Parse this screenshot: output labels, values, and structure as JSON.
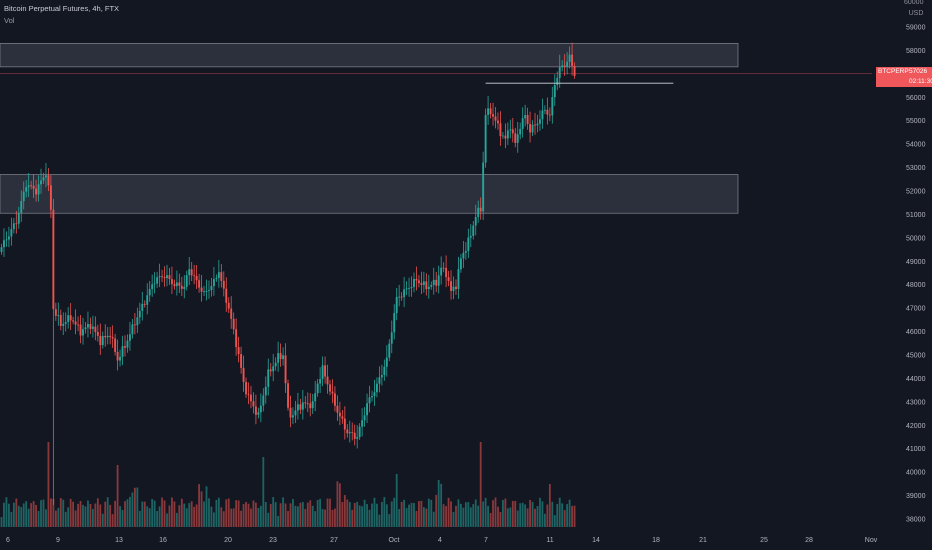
{
  "header": {
    "title": "Bitcoin Perpetual Futures, 4h, FTX",
    "indicator": "Vol"
  },
  "price_scale": {
    "currency": "USD",
    "top_tick": "60000"
  },
  "last_price": {
    "symbol": "BTCPERP",
    "price": "57026",
    "countdown": "02:11:30"
  },
  "colors": {
    "background": "#131722",
    "up": "#26a69a",
    "down": "#ef5350",
    "zone_fill": "#363a45",
    "zone_border": "#787b86",
    "axis_text": "#b2b5be",
    "last_price_line": "#f0575b"
  },
  "chart_data": {
    "type": "candlestick",
    "title": "Bitcoin Perpetual Futures, 4h, FTX",
    "ylim": [
      37500,
      60500
    ],
    "y_ticks": [
      38000,
      39000,
      40000,
      41000,
      42000,
      43000,
      44000,
      45000,
      46000,
      47000,
      48000,
      49000,
      50000,
      51000,
      52000,
      53000,
      54000,
      55000,
      56000,
      57000,
      58000,
      59000
    ],
    "x_ticks": [
      "6",
      "9",
      "13",
      "16",
      "20",
      "23",
      "27",
      "Oct",
      "4",
      "7",
      "11",
      "14",
      "18",
      "21",
      "25",
      "28",
      "Nov"
    ],
    "series": [
      {
        "name": "BTCPERP",
        "anchors": [
          [
            0,
            49600
          ],
          [
            6,
            50700
          ],
          [
            10,
            52300
          ],
          [
            14,
            52000
          ],
          [
            18,
            52800
          ],
          [
            19,
            52100
          ],
          [
            20,
            51200
          ],
          [
            21,
            47000
          ],
          [
            24,
            46300
          ],
          [
            28,
            46600
          ],
          [
            32,
            46000
          ],
          [
            36,
            46300
          ],
          [
            40,
            45600
          ],
          [
            44,
            45900
          ],
          [
            47,
            44800
          ],
          [
            50,
            45400
          ],
          [
            54,
            46400
          ],
          [
            58,
            47300
          ],
          [
            62,
            48200
          ],
          [
            66,
            48400
          ],
          [
            70,
            48000
          ],
          [
            74,
            47900
          ],
          [
            76,
            48700
          ],
          [
            78,
            48300
          ],
          [
            82,
            47600
          ],
          [
            86,
            48100
          ],
          [
            88,
            48600
          ],
          [
            90,
            47700
          ],
          [
            92,
            47000
          ],
          [
            96,
            45000
          ],
          [
            98,
            43800
          ],
          [
            100,
            43200
          ],
          [
            104,
            42400
          ],
          [
            108,
            44200
          ],
          [
            112,
            44900
          ],
          [
            114,
            45000
          ],
          [
            116,
            42600
          ],
          [
            118,
            42400
          ],
          [
            120,
            42800
          ],
          [
            122,
            42900
          ],
          [
            126,
            42900
          ],
          [
            128,
            43800
          ],
          [
            130,
            44400
          ],
          [
            132,
            43800
          ],
          [
            136,
            42600
          ],
          [
            140,
            41700
          ],
          [
            144,
            41500
          ],
          [
            148,
            42900
          ],
          [
            152,
            43700
          ],
          [
            156,
            44800
          ],
          [
            160,
            47400
          ],
          [
            164,
            47800
          ],
          [
            168,
            48200
          ],
          [
            172,
            47900
          ],
          [
            176,
            48100
          ],
          [
            178,
            48700
          ],
          [
            180,
            48500
          ],
          [
            182,
            47700
          ],
          [
            184,
            48000
          ],
          [
            186,
            49100
          ],
          [
            190,
            50100
          ],
          [
            192,
            51000
          ],
          [
            194,
            51200
          ],
          [
            196,
            55300
          ],
          [
            198,
            55400
          ],
          [
            200,
            55000
          ],
          [
            202,
            54500
          ],
          [
            204,
            54200
          ],
          [
            206,
            54800
          ],
          [
            208,
            54000
          ],
          [
            210,
            54800
          ],
          [
            212,
            55200
          ],
          [
            214,
            54600
          ],
          [
            216,
            54800
          ],
          [
            218,
            55100
          ],
          [
            220,
            55500
          ],
          [
            222,
            55200
          ],
          [
            224,
            56600
          ],
          [
            226,
            57200
          ],
          [
            228,
            57400
          ],
          [
            230,
            57700
          ],
          [
            232,
            57000
          ]
        ],
        "volume_profile": [
          1,
          1,
          2,
          1,
          1,
          1,
          3,
          1,
          1,
          2,
          1,
          1,
          1,
          4,
          1,
          1,
          1,
          1,
          2,
          1,
          9,
          3,
          2,
          1,
          1,
          1,
          1,
          2,
          1,
          1,
          1,
          1,
          2,
          1,
          4,
          1,
          1,
          1,
          1,
          2,
          1,
          1,
          1,
          1,
          5,
          1,
          1,
          1,
          2,
          1,
          1,
          1,
          1,
          1,
          3,
          1,
          1,
          2,
          1,
          1
        ]
      }
    ],
    "resistance_zones": [
      {
        "low": 57300,
        "high": 58300
      },
      {
        "low": 51050,
        "high": 52700
      }
    ],
    "level_lines": [
      {
        "value": 56600,
        "from_bar": 196,
        "to_bar": 272
      }
    ],
    "last_price_line": 57026,
    "grid": false,
    "legend": "none"
  }
}
